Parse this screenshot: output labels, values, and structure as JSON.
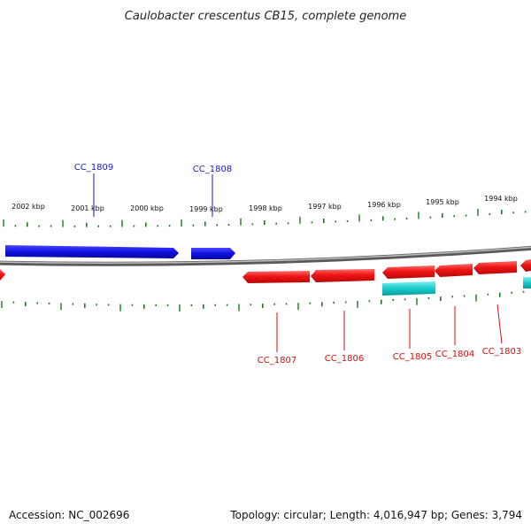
{
  "title": "Caulobacter crescentus CB15, complete genome",
  "footer": {
    "accession": "Accession: NC_002696",
    "summary": "Topology: circular; Length: 4,016,947 bp; Genes: 3,794"
  },
  "colors": {
    "forward_gene": "#1010e0",
    "reverse_gene": "#e81010",
    "other_feature": "#10c8c8",
    "ticks": "#1a7a1a",
    "backbone": "#8a8a8a",
    "forward_label": "#1a1ab0",
    "reverse_label": "#cc1010"
  },
  "scale_labels": [
    "2002 kbp",
    "2001 kbp",
    "2000 kbp",
    "1999 kbp",
    "1998 kbp",
    "1997 kbp",
    "1996 kbp",
    "1995 kbp",
    "1994 kbp"
  ],
  "gene_labels": {
    "forward": [
      "CC_1809",
      "CC_1808"
    ],
    "reverse": [
      "CC_1807",
      "CC_1806",
      "CC_1805",
      "CC_1804",
      "CC_1803"
    ]
  }
}
